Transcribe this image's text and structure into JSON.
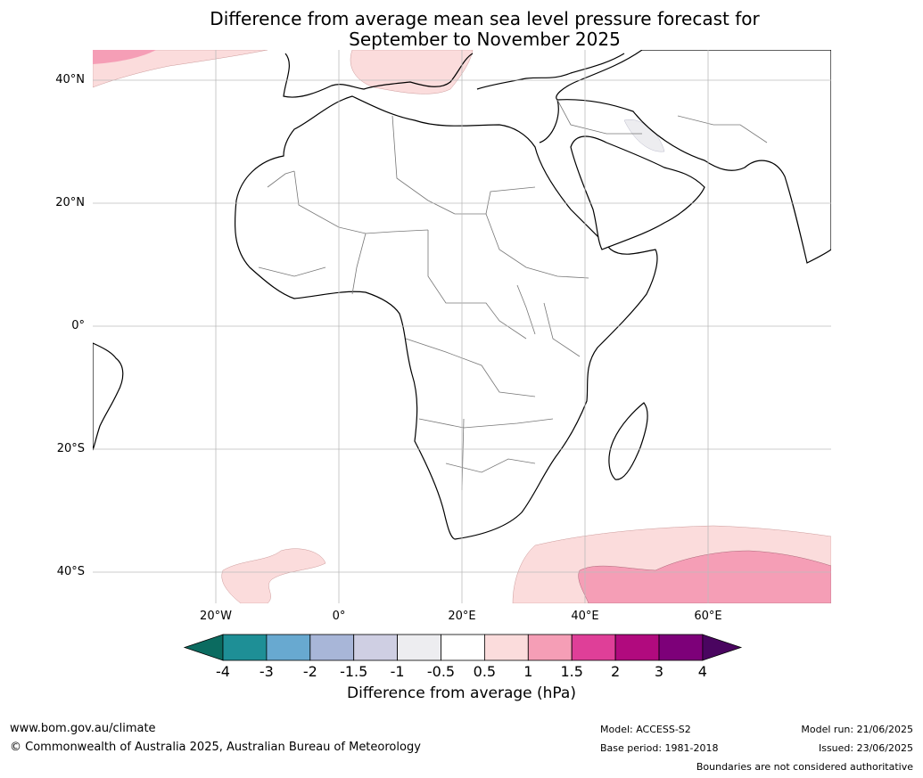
{
  "title": {
    "line1": "Difference from average mean sea level pressure forecast for",
    "line2": "September to November 2025"
  },
  "map": {
    "lat_labels": [
      "40°N",
      "20°N",
      "0°",
      "20°S",
      "40°S"
    ],
    "lon_labels": [
      "20°W",
      "0°",
      "20°E",
      "40°E",
      "60°E"
    ]
  },
  "colorbar": {
    "title": "Difference from average (hPa)",
    "labels": [
      "-4",
      "-3",
      "-2",
      "-1.5",
      "-1",
      "-0.5",
      "0.5",
      "1",
      "1.5",
      "2",
      "3",
      "4"
    ],
    "colors": [
      "#0b6b60",
      "#1e8f96",
      "#68a9d0",
      "#a8b6d8",
      "#cfcfe3",
      "#ededf0",
      "#ffffff",
      "#fbdcdc",
      "#f59eb6",
      "#df3f98",
      "#b10a7e",
      "#7d0079",
      "#4a0560"
    ]
  },
  "footer": {
    "url": "www.bom.gov.au/climate",
    "copyright": "© Commonwealth of Australia 2025, Australian Bureau of Meteorology",
    "model": "Model: ACCESS-S2",
    "base_period": "Base period: 1981-2018",
    "model_run": "Model run: 21/06/2025",
    "issued": "Issued: 23/06/2025",
    "disclaimer": "Boundaries are not considered authoritative"
  }
}
